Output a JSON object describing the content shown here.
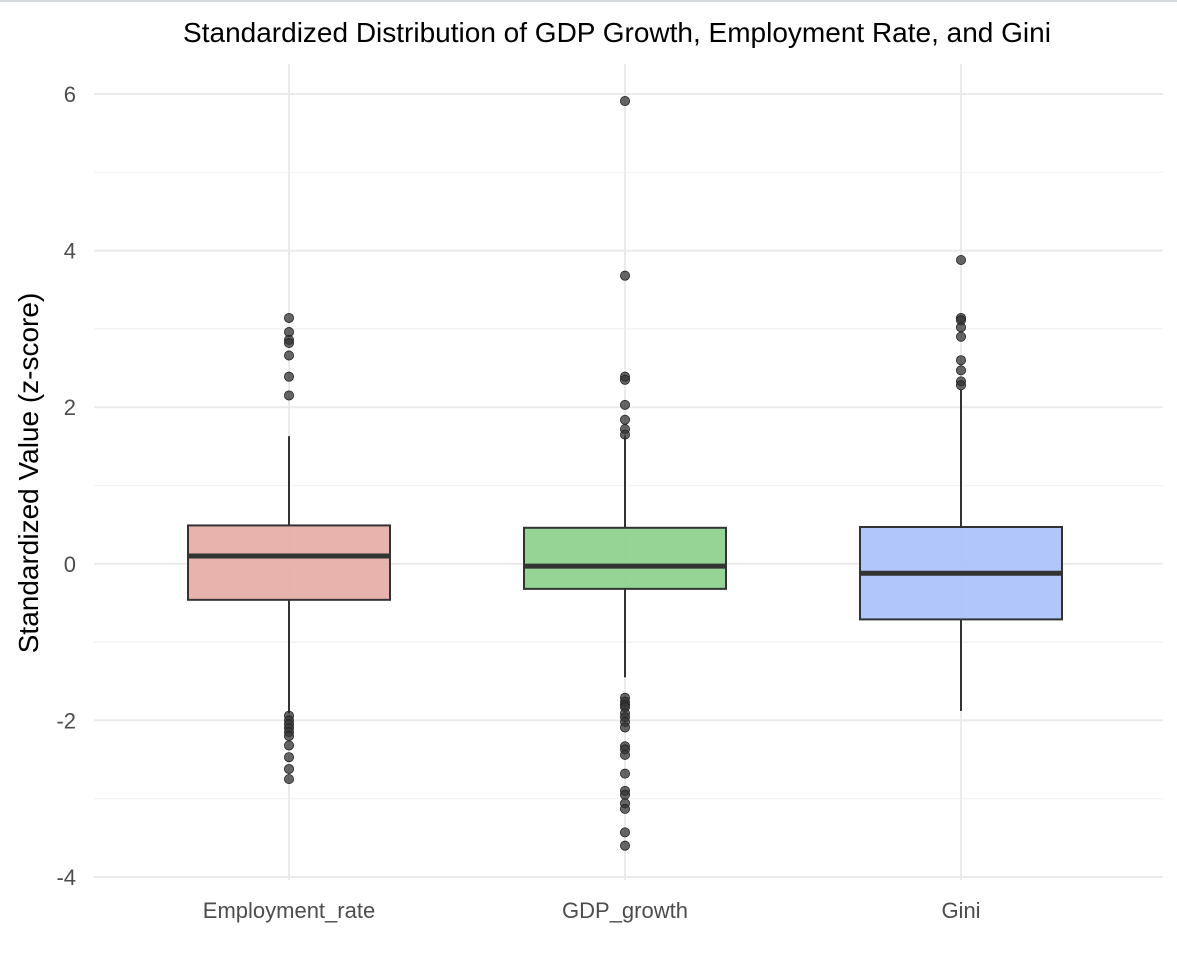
{
  "chart_data": {
    "type": "boxplot",
    "title": "Standardized Distribution of GDP Growth, Employment Rate, and Gini",
    "xlabel": "",
    "ylabel": "Standardized Value (z-score)",
    "ylim": [
      -4,
      6.3
    ],
    "y_ticks": [
      -4,
      -2,
      0,
      2,
      4,
      6
    ],
    "y_tick_labels": [
      "-4",
      "-2",
      "0",
      "2",
      "4",
      "6"
    ],
    "y_minor_ticks": [
      -3,
      -1,
      1,
      3,
      5
    ],
    "grid": true,
    "legend": "none",
    "categories": [
      "Employment_rate",
      "GDP_growth",
      "Gini"
    ],
    "series": [
      {
        "name": "Employment_rate",
        "color": "#e8afa9",
        "q1": -0.46,
        "median": 0.1,
        "q3": 0.49,
        "whisker_low": -1.91,
        "whisker_high": 1.63,
        "outliers": [
          3.14,
          2.96,
          2.86,
          2.82,
          2.66,
          2.39,
          2.15,
          -1.94,
          -2.0,
          -2.05,
          -2.1,
          -2.15,
          -2.2,
          -2.32,
          -2.47,
          -2.62,
          -2.75
        ]
      },
      {
        "name": "GDP_growth",
        "color": "#8fd28f",
        "q1": -0.32,
        "median": -0.03,
        "q3": 0.46,
        "whisker_low": -1.45,
        "whisker_high": 1.64,
        "outliers": [
          5.91,
          3.68,
          2.39,
          2.35,
          2.03,
          1.84,
          1.72,
          1.65,
          -1.71,
          -1.76,
          -1.8,
          -1.83,
          -1.91,
          -1.96,
          -2.02,
          -2.09,
          -2.33,
          -2.37,
          -2.44,
          -2.68,
          -2.9,
          -2.95,
          -3.06,
          -3.13,
          -3.43,
          -3.6
        ]
      },
      {
        "name": "Gini",
        "color": "#adc3fb",
        "q1": -0.71,
        "median": -0.12,
        "q3": 0.47,
        "whisker_low": -1.88,
        "whisker_high": 2.22,
        "outliers": [
          3.88,
          3.14,
          3.11,
          3.02,
          2.9,
          2.6,
          2.47,
          2.33,
          2.28
        ]
      }
    ]
  }
}
